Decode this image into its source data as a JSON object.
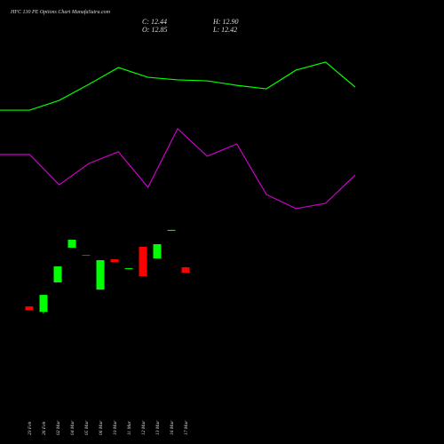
{
  "header": {
    "title": "HFC 130 PE Options Chart ManafaSutra.com",
    "close": "C: 12.44",
    "open": "O: 12.85",
    "high": "H: 12.90",
    "low": "L: 12.42"
  },
  "chart_data": [
    {
      "type": "candlestick",
      "categories": [
        "23 Feb",
        "26 Feb",
        "02 Mar",
        "04 Mar",
        "05 Mar",
        "06 Mar",
        "10 Mar",
        "11 Mar",
        "12 Mar",
        "13 Mar",
        "16 Mar",
        "17 Mar"
      ],
      "open": [
        9.84,
        9.43,
        11.69,
        14.36,
        13.81,
        11.14,
        13.47,
        12.71,
        14.43,
        13.53,
        15.66,
        12.85
      ],
      "high": [
        9.84,
        10.73,
        12.92,
        14.97,
        13.81,
        13.4,
        13.47,
        12.78,
        14.43,
        14.63,
        15.73,
        12.9
      ],
      "low": [
        9.56,
        9.29,
        11.69,
        14.36,
        13.74,
        11.14,
        13.26,
        12.71,
        12.17,
        13.53,
        15.66,
        12.42
      ],
      "close": [
        9.56,
        10.73,
        12.92,
        14.97,
        13.74,
        13.4,
        13.26,
        12.78,
        12.17,
        14.63,
        15.73,
        12.44
      ],
      "up_color": "#00ff00",
      "down_color": "#ff0000",
      "ylim": [
        5,
        19
      ]
    },
    {
      "type": "line",
      "x": [
        0,
        1,
        2,
        3,
        4,
        5,
        6,
        7,
        8,
        9,
        10,
        11,
        12
      ],
      "xlim": [
        0,
        12
      ],
      "ylim": [
        0,
        100
      ],
      "series": [
        {
          "color": "#00ff00",
          "values": [
            61.8,
            61.8,
            66.8,
            75,
            83.6,
            78.6,
            77.3,
            76.8,
            74.5,
            72.7,
            82.3,
            86.4,
            73.6
          ]
        },
        {
          "color": "#cc00cc",
          "values": [
            39.1,
            39.1,
            23.6,
            34.5,
            40.5,
            22.3,
            52.3,
            38.2,
            44.5,
            18.6,
            11.4,
            14.1,
            28.6
          ]
        }
      ]
    }
  ]
}
